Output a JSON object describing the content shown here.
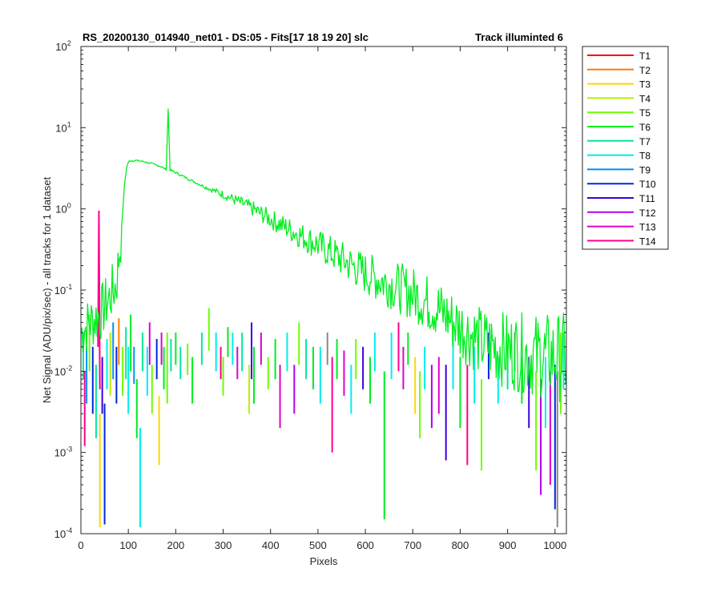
{
  "chart_data": {
    "type": "line",
    "title_left": "RS_20200130_014940_net01 - DS:05 - Fits[17   18  19  20]   slc",
    "title_right": "Track illuminted 6",
    "xlabel": "Pixels",
    "ylabel": "Net Signal (ADU/pix/sec) - all tracks for 1 dataset",
    "y_scale": "log",
    "xlim": [
      0,
      1024
    ],
    "ylim": [
      0.0001,
      100
    ],
    "x_ticks": [
      0,
      100,
      200,
      300,
      400,
      500,
      600,
      700,
      800,
      900,
      1000
    ],
    "y_ticks": [
      {
        "value": 0.0001,
        "base": "10",
        "exp": "-4"
      },
      {
        "value": 0.001,
        "base": "10",
        "exp": "-3"
      },
      {
        "value": 0.01,
        "base": "10",
        "exp": "-2"
      },
      {
        "value": 0.1,
        "base": "10",
        "exp": "-1"
      },
      {
        "value": 1,
        "base": "10",
        "exp": "0"
      },
      {
        "value": 10,
        "base": "10",
        "exp": "1"
      },
      {
        "value": 100,
        "base": "10",
        "exp": "2"
      }
    ],
    "legend_position": "outside-right",
    "series": [
      {
        "name": "T1",
        "color": "#ff0000"
      },
      {
        "name": "T2",
        "color": "#ff7f00"
      },
      {
        "name": "T3",
        "color": "#ffd700"
      },
      {
        "name": "T4",
        "color": "#b5f000"
      },
      {
        "name": "T5",
        "color": "#6cff00"
      },
      {
        "name": "T6",
        "color": "#00ee20"
      },
      {
        "name": "T7",
        "color": "#00e8a0"
      },
      {
        "name": "T8",
        "color": "#00eeee"
      },
      {
        "name": "T9",
        "color": "#0090ff"
      },
      {
        "name": "T10",
        "color": "#0028e0"
      },
      {
        "name": "T11",
        "color": "#3c00e0"
      },
      {
        "name": "T12",
        "color": "#b400f0"
      },
      {
        "name": "T13",
        "color": "#e000d0"
      },
      {
        "name": "T14",
        "color": "#ff0090"
      }
    ],
    "main_series": {
      "name": "T6",
      "points": [
        [
          0,
          0.03
        ],
        [
          20,
          0.04
        ],
        [
          40,
          0.05
        ],
        [
          60,
          0.08
        ],
        [
          75,
          0.12
        ],
        [
          85,
          0.5
        ],
        [
          92,
          2.0
        ],
        [
          97,
          3.4
        ],
        [
          102,
          3.9
        ],
        [
          115,
          3.95
        ],
        [
          130,
          3.85
        ],
        [
          150,
          3.6
        ],
        [
          170,
          3.3
        ],
        [
          180,
          3.05
        ],
        [
          184,
          17
        ],
        [
          188,
          3.0
        ],
        [
          200,
          2.8
        ],
        [
          250,
          2.0
        ],
        [
          300,
          1.5
        ],
        [
          350,
          1.1
        ],
        [
          400,
          0.75
        ],
        [
          450,
          0.52
        ],
        [
          500,
          0.36
        ],
        [
          550,
          0.24
        ],
        [
          600,
          0.16
        ],
        [
          650,
          0.12
        ],
        [
          700,
          0.09
        ],
        [
          750,
          0.06
        ],
        [
          800,
          0.035
        ],
        [
          850,
          0.022
        ],
        [
          900,
          0.018
        ],
        [
          950,
          0.016
        ],
        [
          1000,
          0.015
        ],
        [
          1024,
          0.015
        ]
      ]
    },
    "secondary_spike": {
      "name": "T14",
      "x": 38,
      "y_low": 0.02,
      "y_high": 0.95
    },
    "scatter_segments": [
      [
        5,
        0.008,
        0.03,
        6
      ],
      [
        8,
        0.0012,
        0.01,
        13
      ],
      [
        12,
        0.004,
        0.02,
        8
      ],
      [
        18,
        0.01,
        0.05,
        4
      ],
      [
        25,
        0.003,
        0.02,
        9
      ],
      [
        32,
        0.0015,
        0.012,
        6
      ],
      [
        40,
        0.00012,
        0.003,
        2
      ],
      [
        45,
        0.003,
        0.015,
        10
      ],
      [
        50,
        0.00013,
        0.004,
        9
      ],
      [
        55,
        0.006,
        0.025,
        7
      ],
      [
        62,
        0.005,
        0.03,
        3
      ],
      [
        68,
        0.008,
        0.04,
        8
      ],
      [
        75,
        0.004,
        0.02,
        9
      ],
      [
        80,
        0.012,
        0.045,
        1
      ],
      [
        88,
        0.005,
        0.02,
        4
      ],
      [
        95,
        0.008,
        0.035,
        6
      ],
      [
        100,
        0.003,
        0.02,
        7
      ],
      [
        105,
        0.01,
        0.05,
        5
      ],
      [
        112,
        0.007,
        0.02,
        8
      ],
      [
        118,
        0.0015,
        0.008,
        5
      ],
      [
        125,
        0.00012,
        0.002,
        7
      ],
      [
        130,
        0.01,
        0.03,
        6
      ],
      [
        140,
        0.005,
        0.02,
        7
      ],
      [
        145,
        0.012,
        0.04,
        12
      ],
      [
        150,
        0.003,
        0.012,
        4
      ],
      [
        160,
        0.008,
        0.025,
        9
      ],
      [
        165,
        0.0007,
        0.005,
        2
      ],
      [
        170,
        0.012,
        0.03,
        12
      ],
      [
        175,
        0.006,
        0.02,
        5
      ],
      [
        182,
        0.004,
        0.03,
        4
      ],
      [
        190,
        0.01,
        0.025,
        6
      ],
      [
        200,
        0.012,
        0.03,
        5
      ],
      [
        210,
        0.008,
        0.02,
        6
      ],
      [
        225,
        0.009,
        0.022,
        4
      ],
      [
        235,
        0.004,
        0.015,
        5
      ],
      [
        255,
        0.012,
        0.03,
        6
      ],
      [
        270,
        0.018,
        0.06,
        4
      ],
      [
        285,
        0.01,
        0.03,
        7
      ],
      [
        295,
        0.008,
        0.02,
        13
      ],
      [
        300,
        0.005,
        0.015,
        4
      ],
      [
        310,
        0.015,
        0.035,
        5
      ],
      [
        320,
        0.012,
        0.03,
        7
      ],
      [
        330,
        0.008,
        0.02,
        12
      ],
      [
        340,
        0.01,
        0.03,
        6
      ],
      [
        355,
        0.003,
        0.012,
        3
      ],
      [
        360,
        0.008,
        0.04,
        10
      ],
      [
        365,
        0.004,
        0.02,
        5
      ],
      [
        380,
        0.012,
        0.03,
        12
      ],
      [
        395,
        0.006,
        0.015,
        4
      ],
      [
        410,
        0.008,
        0.025,
        5
      ],
      [
        420,
        0.002,
        0.012,
        12
      ],
      [
        435,
        0.01,
        0.03,
        7
      ],
      [
        450,
        0.003,
        0.012,
        11
      ],
      [
        460,
        0.012,
        0.04,
        4
      ],
      [
        475,
        0.008,
        0.025,
        6
      ],
      [
        490,
        0.006,
        0.02,
        5
      ],
      [
        505,
        0.004,
        0.02,
        7
      ],
      [
        520,
        0.012,
        0.03,
        14
      ],
      [
        530,
        0.001,
        0.015,
        13
      ],
      [
        540,
        0.008,
        0.025,
        5
      ],
      [
        555,
        0.005,
        0.018,
        12
      ],
      [
        570,
        0.003,
        0.012,
        7
      ],
      [
        580,
        0.008,
        0.025,
        4
      ],
      [
        595,
        0.006,
        0.02,
        10
      ],
      [
        610,
        0.004,
        0.015,
        5
      ],
      [
        620,
        0.01,
        0.03,
        7
      ],
      [
        640,
        0.00015,
        0.01,
        5
      ],
      [
        655,
        0.008,
        0.03,
        7
      ],
      [
        670,
        0.01,
        0.04,
        13
      ],
      [
        680,
        0.006,
        0.02,
        12
      ],
      [
        690,
        0.012,
        0.03,
        5
      ],
      [
        705,
        0.003,
        0.015,
        2
      ],
      [
        715,
        0.0015,
        0.01,
        4
      ],
      [
        725,
        0.006,
        0.02,
        7
      ],
      [
        740,
        0.002,
        0.012,
        11
      ],
      [
        755,
        0.003,
        0.015,
        12
      ],
      [
        770,
        0.0008,
        0.012,
        10
      ],
      [
        785,
        0.006,
        0.03,
        7
      ],
      [
        800,
        0.002,
        0.015,
        5
      ],
      [
        815,
        0.0007,
        0.012,
        13
      ],
      [
        830,
        0.004,
        0.02,
        7
      ],
      [
        845,
        0.0006,
        0.008,
        4
      ],
      [
        860,
        0.008,
        0.03,
        9
      ],
      [
        880,
        0.004,
        0.015,
        7
      ],
      [
        900,
        0.006,
        0.02,
        6
      ],
      [
        915,
        0.01,
        0.03,
        14
      ],
      [
        930,
        0.004,
        0.015,
        5
      ],
      [
        945,
        0.002,
        0.015,
        10
      ],
      [
        960,
        0.0006,
        0.01,
        4
      ],
      [
        970,
        0.0003,
        0.008,
        11
      ],
      [
        980,
        0.002,
        0.015,
        7
      ],
      [
        990,
        0.0004,
        0.01,
        12
      ],
      [
        1000,
        0.0002,
        0.012,
        9
      ],
      [
        1005,
        0.00012,
        0.01,
        14
      ],
      [
        1012,
        0.003,
        0.03,
        4
      ],
      [
        1018,
        0.006,
        0.03,
        7
      ]
    ]
  }
}
